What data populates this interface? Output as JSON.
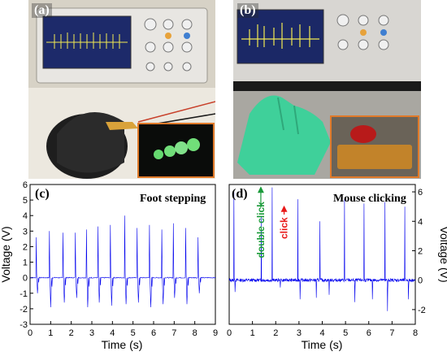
{
  "panels": {
    "a": {
      "label": "(a)"
    },
    "b": {
      "label": "(b)"
    },
    "c": {
      "label": "(c)"
    },
    "d": {
      "label": "(d)"
    }
  },
  "colors": {
    "trace": "#0000ee",
    "inset_border": "#e07a2a",
    "glove": "#3fd09a",
    "click_arrow": "#e81818",
    "double_click": "#1a9a3a"
  },
  "chart_data": [
    {
      "type": "line",
      "title": "Foot stepping",
      "xlabel": "Time (s)",
      "ylabel": "Voltage (V)",
      "xlim": [
        0,
        9
      ],
      "ylim": [
        -3,
        6
      ],
      "x_ticks": [
        "0",
        "1",
        "2",
        "3",
        "4",
        "5",
        "6",
        "7",
        "8",
        "9"
      ],
      "y_ticks": [
        "-3",
        "-2",
        "-1",
        "0",
        "1",
        "2",
        "3",
        "4",
        "5",
        "6"
      ],
      "y_axis_side": "left",
      "series": [
        {
          "peak_times_s": [
            0.3,
            0.95,
            1.6,
            2.2,
            2.75,
            3.3,
            3.9,
            4.6,
            5.2,
            5.8,
            6.4,
            6.95,
            7.55,
            8.15
          ],
          "peak_values_v": [
            2.6,
            3.0,
            2.9,
            2.9,
            3.1,
            3.3,
            3.4,
            4.0,
            3.2,
            3.4,
            3.1,
            3.5,
            3.2,
            2.6
          ],
          "trough_values_v": [
            -1.0,
            -1.9,
            -1.6,
            -1.3,
            -1.9,
            -1.6,
            -1.8,
            -1.7,
            -1.6,
            -1.9,
            -1.7,
            -1.3,
            -1.7,
            -1.0
          ]
        }
      ]
    },
    {
      "type": "line",
      "title": "Mouse clicking",
      "xlabel": "Time (s)",
      "ylabel": "Voltage (V)",
      "xlim": [
        0,
        8
      ],
      "ylim": [
        -3,
        6.5
      ],
      "x_ticks": [
        "0",
        "1",
        "2",
        "3",
        "4",
        "5",
        "6",
        "7",
        "8"
      ],
      "y_ticks": [
        "-2",
        "0",
        "2",
        "4",
        "6"
      ],
      "y_axis_side": "right",
      "annotations": [
        {
          "text": "double click",
          "color": "#1a9a3a",
          "x": 1.5,
          "y": 1.5
        },
        {
          "text": "click",
          "color": "#e81818",
          "x": 2.5,
          "y": 2.8
        }
      ],
      "series": [
        {
          "peak_times_s": [
            0.2,
            1.38,
            1.85,
            2.95,
            3.9,
            4.95,
            5.8,
            6.7,
            7.55
          ],
          "peak_values_v": [
            6.0,
            4.3,
            6.3,
            5.5,
            4.0,
            5.5,
            5.2,
            5.3,
            5.0
          ],
          "trough_times_s": [
            0.25,
            2.2,
            3.05,
            3.75,
            4.3,
            5.4,
            6.15,
            6.8,
            7.7
          ],
          "trough_values_v": [
            -0.8,
            -0.5,
            -1.3,
            -1.2,
            -1.0,
            -1.5,
            -1.3,
            -2.1,
            -1.3
          ]
        }
      ]
    }
  ]
}
